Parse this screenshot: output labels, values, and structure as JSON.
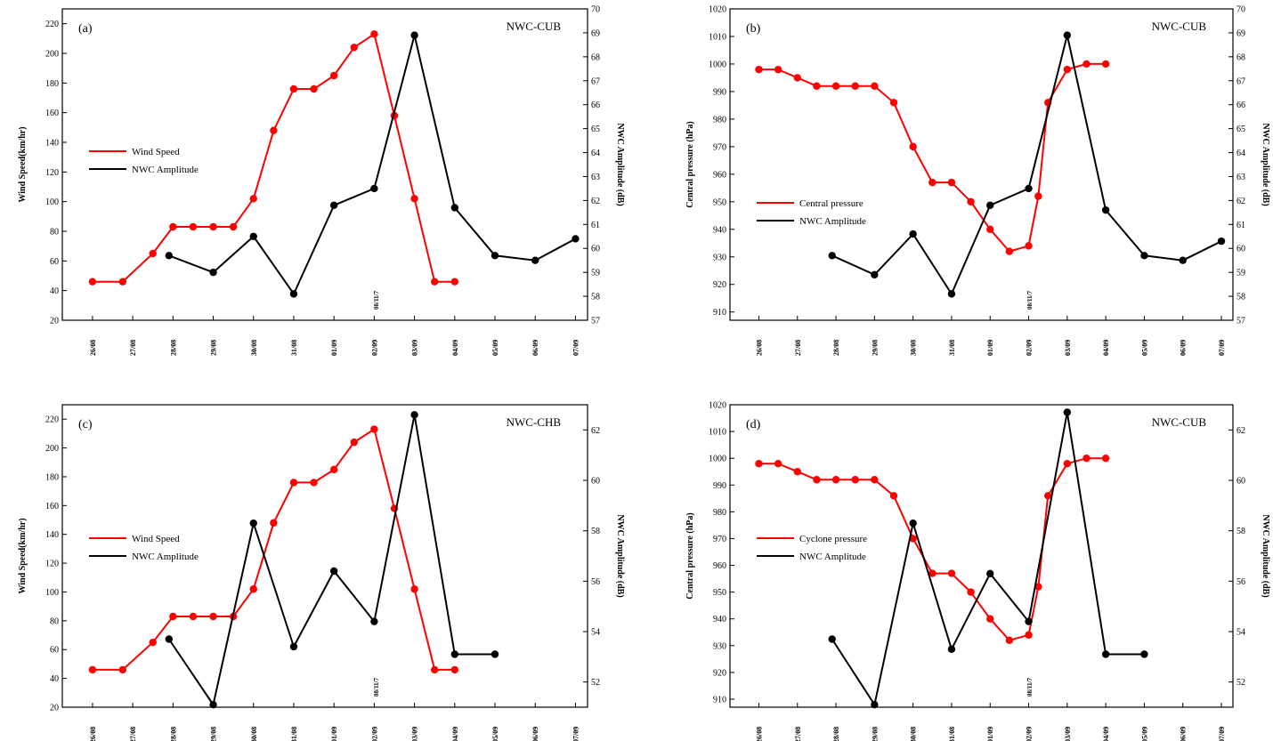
{
  "chart_data": [
    {
      "type": "line",
      "panel_label": "(a)",
      "station": "NWC-CUB",
      "ylabel_left": "Wind Speed(km/hr)",
      "ylabel_right": "NWC Amplitude (dB)",
      "ylim_left": [
        20,
        230
      ],
      "ylim_right": [
        57,
        70
      ],
      "yticks_left": [
        "20",
        "40",
        "60",
        "80",
        "100",
        "120",
        "140",
        "160",
        "180",
        "200",
        "220"
      ],
      "yticks_right": [
        "57",
        "58",
        "59",
        "60",
        "61",
        "62",
        "63",
        "64",
        "65",
        "66",
        "67",
        "68",
        "69",
        "70"
      ],
      "x_dates": [
        "26/08",
        "27/08",
        "28/08",
        "29/08",
        "30/08",
        "31/08",
        "01/09",
        "02/09",
        "03/09",
        "04/09",
        "05/09",
        "06/09",
        "07/09"
      ],
      "marker_label": "08/11/7",
      "marker_x": 7.5,
      "legend": "left-middle",
      "series": [
        {
          "name": "Wind Speed",
          "color": "#ff0000",
          "axis": "left",
          "x": [
            0,
            0.75,
            1.5,
            2,
            2.5,
            3,
            3.5,
            4,
            4.5,
            5,
            5.5,
            6,
            6.5,
            7,
            7.5,
            8,
            8.5,
            9
          ],
          "y": [
            46,
            46,
            65,
            83,
            83,
            83,
            83,
            102,
            148,
            176,
            176,
            185,
            204,
            213,
            158,
            102,
            46,
            46
          ]
        },
        {
          "name": "NWC Amplitude",
          "color": "#000000",
          "axis": "right",
          "x": [
            1.9,
            3,
            4,
            5,
            6,
            7,
            8,
            9,
            10,
            11,
            12
          ],
          "y": [
            59.7,
            59.0,
            60.5,
            58.1,
            61.8,
            62.5,
            68.9,
            61.7,
            59.7,
            59.5,
            60.4
          ]
        }
      ]
    },
    {
      "type": "line",
      "panel_label": "(b)",
      "station": "NWC-CUB",
      "ylabel_left": "Central pressure (hPa)",
      "ylabel_right": "NWC Amplitude (dB)",
      "ylim_left": [
        907,
        1020
      ],
      "ylim_right": [
        57,
        70
      ],
      "yticks_left": [
        "910",
        "920",
        "930",
        "940",
        "950",
        "960",
        "970",
        "980",
        "990",
        "1000",
        "1010",
        "1020"
      ],
      "yticks_right": [
        "57",
        "58",
        "59",
        "60",
        "61",
        "62",
        "63",
        "64",
        "65",
        "66",
        "67",
        "68",
        "69",
        "70"
      ],
      "x_dates": [
        "26/08",
        "27/08",
        "28/08",
        "29/08",
        "30/08",
        "31/08",
        "01/09",
        "02/09",
        "03/09",
        "04/09",
        "05/09",
        "06/09",
        "07/09"
      ],
      "marker_label": "08/11/7",
      "marker_x": 7.5,
      "legend": "left-middle",
      "series": [
        {
          "name": "Central pressure",
          "color": "#ff0000",
          "axis": "left",
          "x": [
            0,
            0.5,
            1,
            1.5,
            2,
            2.5,
            3,
            3.5,
            4,
            4.5,
            5,
            5.5,
            6,
            6.5,
            7,
            7.25,
            7.5,
            8,
            8.5,
            9
          ],
          "y": [
            998,
            998,
            995,
            992,
            992,
            992,
            992,
            986,
            970,
            957,
            957,
            950,
            940,
            932,
            934,
            952,
            986,
            998,
            1000,
            1000
          ]
        },
        {
          "name": "NWC Amplitude",
          "color": "#000000",
          "axis": "right",
          "x": [
            1.9,
            3,
            4,
            5,
            6,
            7,
            8,
            9,
            10,
            11,
            12
          ],
          "y": [
            59.7,
            58.9,
            60.6,
            58.1,
            61.8,
            62.5,
            68.9,
            61.6,
            59.7,
            59.5,
            60.3
          ]
        }
      ]
    },
    {
      "type": "line",
      "panel_label": "(c)",
      "station": "NWC-CHB",
      "ylabel_left": "Wind Speed(km/hr)",
      "ylabel_right": "NWC Amplitude (dB)",
      "ylim_left": [
        20,
        230
      ],
      "ylim_right": [
        51,
        63
      ],
      "yticks_left": [
        "20",
        "40",
        "60",
        "80",
        "100",
        "120",
        "140",
        "160",
        "180",
        "200",
        "220"
      ],
      "yticks_right": [
        "52",
        "54",
        "56",
        "58",
        "60",
        "62"
      ],
      "x_dates": [
        "26/08",
        "27/08",
        "28/08",
        "29/08",
        "30/08",
        "31/08",
        "01/09",
        "02/09",
        "03/09",
        "04/09",
        "05/09",
        "06/09",
        "07/09"
      ],
      "marker_label": "08/11/7",
      "marker_x": 7.5,
      "legend": "left-middle",
      "series": [
        {
          "name": "Wind Speed",
          "color": "#ff0000",
          "axis": "left",
          "x": [
            0,
            0.75,
            1.5,
            2,
            2.5,
            3,
            3.5,
            4,
            4.5,
            5,
            5.5,
            6,
            6.5,
            7,
            7.5,
            8,
            8.5,
            9
          ],
          "y": [
            46,
            46,
            65,
            83,
            83,
            83,
            83,
            102,
            148,
            176,
            176,
            185,
            204,
            213,
            158,
            102,
            46,
            46
          ]
        },
        {
          "name": "NWC Amplitude",
          "color": "#000000",
          "axis": "right",
          "x": [
            1.9,
            3,
            4,
            5,
            6,
            7,
            8,
            9,
            10
          ],
          "y": [
            53.7,
            51.1,
            58.3,
            53.4,
            56.4,
            54.4,
            62.6,
            53.1,
            53.1
          ]
        }
      ]
    },
    {
      "type": "line",
      "panel_label": "(d)",
      "station": "NWC-CUB",
      "ylabel_left": "Central pressure (hPa)",
      "ylabel_right": "NWC Amplitude (dB)",
      "ylim_left": [
        907,
        1020
      ],
      "ylim_right": [
        51,
        63
      ],
      "yticks_left": [
        "910",
        "920",
        "930",
        "940",
        "950",
        "960",
        "970",
        "980",
        "990",
        "1000",
        "1010",
        "1020"
      ],
      "yticks_right": [
        "52",
        "54",
        "56",
        "58",
        "60",
        "62"
      ],
      "x_dates": [
        "26/08",
        "27/08",
        "28/08",
        "29/08",
        "30/08",
        "31/08",
        "01/09",
        "02/09",
        "03/09",
        "04/09",
        "05/09",
        "06/09",
        "07/09"
      ],
      "marker_label": "08/11/7",
      "marker_x": 7.5,
      "legend": "left-middle",
      "series": [
        {
          "name": "Cyclone pressure",
          "color": "#ff0000",
          "axis": "left",
          "x": [
            0,
            0.5,
            1,
            1.5,
            2,
            2.5,
            3,
            3.5,
            4,
            4.5,
            5,
            5.5,
            6,
            6.5,
            7,
            7.25,
            7.5,
            8,
            8.5,
            9
          ],
          "y": [
            998,
            998,
            995,
            992,
            992,
            992,
            992,
            986,
            970,
            957,
            957,
            950,
            940,
            932,
            934,
            952,
            986,
            998,
            1000,
            1000
          ]
        },
        {
          "name": "NWC Amplitude",
          "color": "#000000",
          "axis": "right",
          "x": [
            1.9,
            3,
            4,
            5,
            6,
            7,
            8,
            9,
            10
          ],
          "y": [
            53.7,
            51.1,
            58.3,
            53.3,
            56.3,
            54.4,
            62.7,
            53.1,
            53.1
          ]
        }
      ]
    }
  ]
}
